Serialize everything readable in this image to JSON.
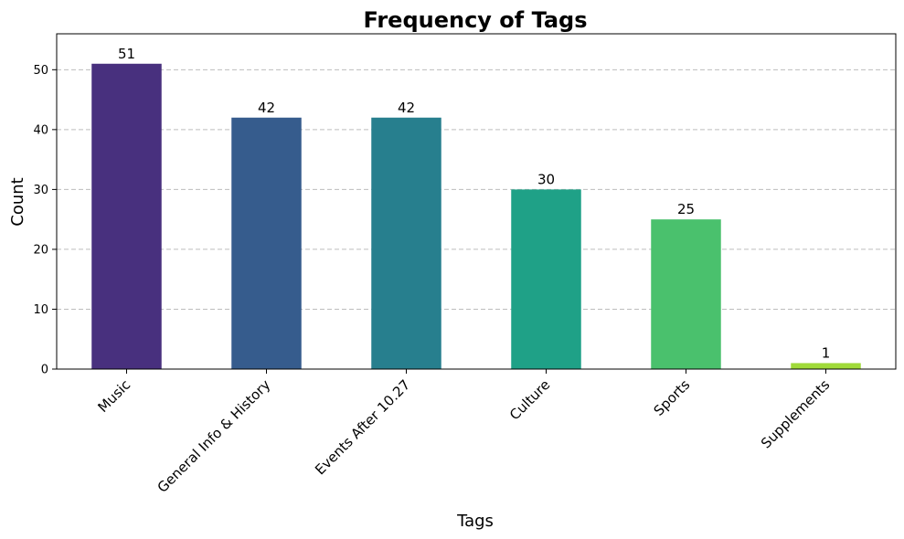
{
  "chart_data": {
    "type": "bar",
    "title": "Frequency of Tags",
    "xlabel": "Tags",
    "ylabel": "Count",
    "categories": [
      "Music",
      "General Info & History",
      "Events After 10.27",
      "Culture",
      "Sports",
      "Supplements"
    ],
    "values": [
      51,
      42,
      42,
      30,
      25,
      1
    ],
    "colors": [
      "#48307e",
      "#365c8d",
      "#277f8e",
      "#1fa187",
      "#4ac16d",
      "#a0da39"
    ],
    "ylim": [
      0,
      56
    ],
    "yticks": [
      0,
      10,
      20,
      30,
      40,
      50
    ],
    "grid": "y-dashed",
    "legend": "none"
  }
}
